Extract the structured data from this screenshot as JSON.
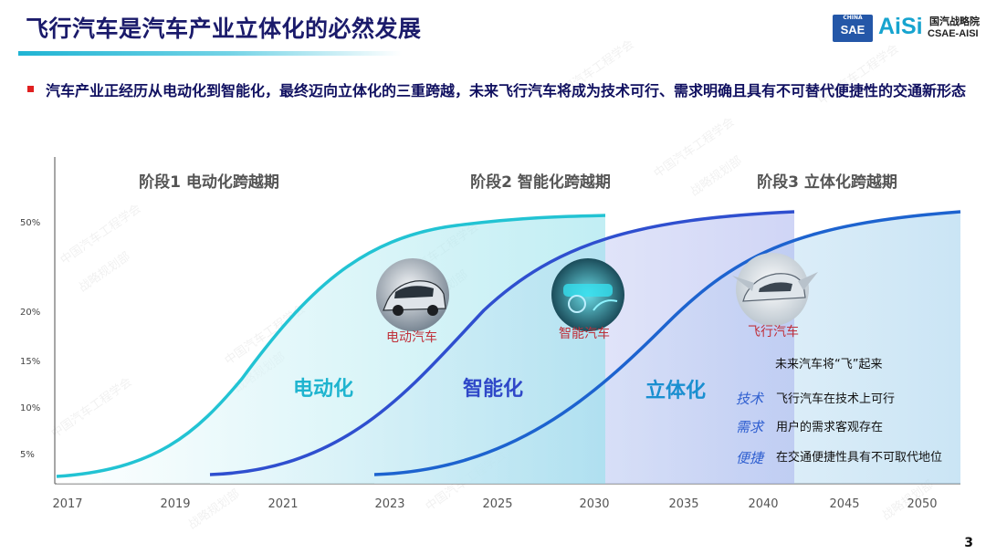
{
  "title": "飞行汽车是汽车产业立体化的必然发展",
  "logo": {
    "china": "CHINA",
    "sae": "SAE",
    "aisi": "AiSi",
    "aisi_cn": "国汽战略院",
    "aisi_en": "CSAE-AISI"
  },
  "subtitle": "汽车产业正经历从电动化到智能化，最终迈向立体化的三重跨越，未来飞行汽车将成为技术可行、需求明确且具有不可替代便捷性的交通新形态",
  "colors": {
    "title": "#1b1b6b",
    "accent_cyan": "#1fc2d6",
    "accent_blue": "#2f4fcf",
    "accent_mid": "#1a6fd0",
    "bullet": "#e02020"
  },
  "chart_data": {
    "type": "line",
    "x_ticks": [
      "2017",
      "2019",
      "2021",
      "2023",
      "2025",
      "2030",
      "2035",
      "2040",
      "2045",
      "2050"
    ],
    "y_ticks": [
      "5%",
      "10%",
      "15%",
      "20%",
      "50%"
    ],
    "stages": [
      {
        "title": "阶段1 电动化跨越期",
        "curve_label": "电动化",
        "icon_label": "电动汽车",
        "icon": "electric-car-icon"
      },
      {
        "title": "阶段2 智能化跨越期",
        "curve_label": "智能化",
        "icon_label": "智能汽车",
        "icon": "smart-cockpit-icon"
      },
      {
        "title": "阶段3 立体化跨越期",
        "curve_label": "立体化",
        "icon_label": "飞行汽车",
        "icon": "flying-car-icon"
      }
    ],
    "callout": {
      "heading": "未来汽车将“飞”起来",
      "items": [
        {
          "key": "技术",
          "text": "飞行汽车在技术上可行"
        },
        {
          "key": "需求",
          "text": "用户的需求客观存在"
        },
        {
          "key": "便捷",
          "text": "在交通便捷性具有不可取代地位"
        }
      ]
    }
  },
  "watermark_lines": [
    "中国汽车工程学会",
    "战略规划部"
  ],
  "page_number": "3"
}
